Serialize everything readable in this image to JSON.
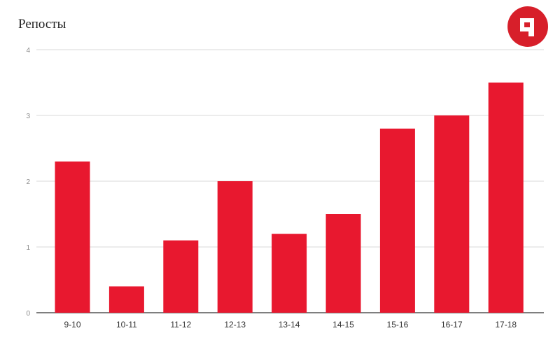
{
  "chart_data": {
    "type": "bar",
    "title": "Репосты",
    "xlabel": "",
    "ylabel": "",
    "categories": [
      "9-10",
      "10-11",
      "11-12",
      "12-13",
      "13-14",
      "14-15",
      "15-16",
      "16-17",
      "17-18"
    ],
    "values": [
      2.3,
      0.4,
      1.1,
      2.0,
      1.2,
      1.5,
      2.8,
      3.0,
      3.5
    ],
    "ylim": [
      0,
      4
    ],
    "yticks": [
      0,
      1,
      2,
      3,
      4
    ],
    "grid": true,
    "legend": "none",
    "bar_color": "#e8182f"
  },
  "logo": {
    "icon": "brand-logo-icon",
    "color": "#d71f2a"
  }
}
